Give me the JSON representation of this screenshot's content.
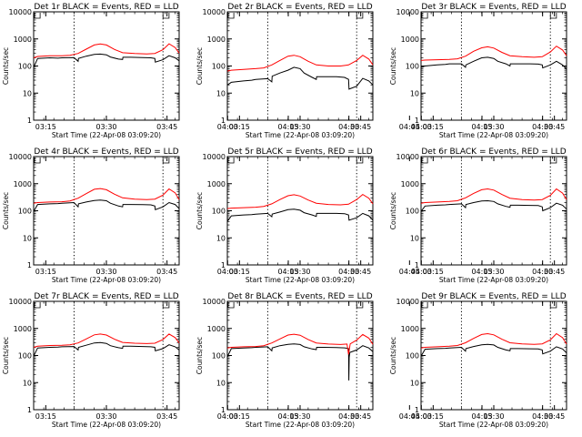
{
  "chart_data": {
    "type": "line",
    "shared": {
      "xlabel": "Start Time (22-Apr-08 03:09:20)",
      "ylabel": "Counts/sec",
      "x_ticks": [
        "03:15",
        "03:30",
        "03:45",
        "04:00",
        "04:15",
        "04:30",
        "04:45"
      ],
      "y_ticks": [
        "1",
        "10",
        "100",
        "1000",
        "10000"
      ],
      "y_scale": "log",
      "ylim": [
        1,
        10000
      ],
      "xlim_minutes": [
        3,
        39
      ],
      "dotted_vlines_minutes": [
        13,
        35
      ],
      "grid": false,
      "series_colors": {
        "events": "#000000",
        "lld": "#ff0000"
      }
    },
    "panels": [
      {
        "title": "Det 1r BLACK = Events, RED = LLD",
        "series": [
          {
            "x": [
              3,
              4,
              7,
              9,
              10,
              13,
              14,
              14.1,
              16,
              18,
              19.5,
              21,
              22,
              24,
              25,
              25.1,
              27,
              30,
              32,
              33,
              33.1,
              35,
              36.5,
              38,
              39
            ],
            "values": [
              90,
              190,
              200,
              195,
              200,
              205,
              150,
              190,
              230,
              270,
              275,
              260,
              215,
              180,
              175,
              210,
              210,
              205,
              200,
              190,
              140,
              170,
              240,
              200,
              155
            ]
          },
          {
            "x": [
              3,
              4,
              7,
              10,
              12,
              14,
              16,
              18,
              19.5,
              21,
              23,
              25,
              28,
              31,
              33,
              35,
              36.5,
              38,
              39
            ],
            "values": [
              200,
              225,
              240,
              240,
              250,
              290,
              420,
              600,
              650,
              600,
              410,
              310,
              290,
              280,
              290,
              400,
              660,
              480,
              300
            ]
          }
        ]
      },
      {
        "title": "Det 2r BLACK = Events, RED = LLD",
        "series": [
          {
            "x": [
              3,
              4,
              7,
              9,
              10,
              13,
              14,
              14.1,
              16,
              18,
              19.5,
              21,
              22,
              24,
              25,
              25.1,
              27,
              30,
              32,
              33,
              33.1,
              35,
              36.5,
              38,
              39
            ],
            "values": [
              20,
              25,
              28,
              30,
              32,
              34,
              26,
              42,
              55,
              70,
              90,
              80,
              55,
              38,
              32,
              40,
              40,
              40,
              38,
              32,
              14,
              18,
              35,
              28,
              20
            ]
          },
          {
            "x": [
              3,
              4,
              7,
              10,
              12,
              14,
              16,
              18,
              19.5,
              21,
              23,
              25,
              28,
              31,
              33,
              35,
              36.5,
              38,
              39
            ],
            "values": [
              65,
              70,
              75,
              80,
              85,
              110,
              160,
              230,
              250,
              220,
              150,
              110,
              100,
              100,
              110,
              160,
              250,
              180,
              110
            ]
          }
        ]
      },
      {
        "title": "Det 3r BLACK = Events, RED = LLD",
        "series": [
          {
            "x": [
              3,
              4,
              7,
              9,
              10,
              13,
              14,
              14.1,
              16,
              18,
              19.5,
              21,
              22,
              24,
              25,
              25.1,
              27,
              30,
              32,
              33,
              33.1,
              35,
              36.5,
              38,
              39
            ],
            "values": [
              90,
              100,
              110,
              115,
              120,
              120,
              90,
              110,
              150,
              200,
              210,
              190,
              150,
              120,
              100,
              120,
              120,
              120,
              118,
              110,
              85,
              110,
              150,
              110,
              75
            ]
          },
          {
            "x": [
              3,
              4,
              7,
              10,
              12,
              14,
              16,
              18,
              19.5,
              21,
              23,
              25,
              28,
              31,
              33,
              35,
              36.5,
              38,
              39
            ],
            "values": [
              160,
              165,
              170,
              175,
              185,
              230,
              350,
              470,
              510,
              460,
              320,
              240,
              220,
              210,
              220,
              330,
              540,
              390,
              240
            ]
          }
        ]
      },
      {
        "title": "Det 4r BLACK = Events, RED = LLD",
        "series": [
          {
            "x": [
              3,
              4,
              7,
              9,
              10,
              13,
              14,
              14.1,
              16,
              18,
              19.5,
              21,
              22,
              24,
              25,
              25.1,
              27,
              30,
              32,
              33,
              33.1,
              35,
              36.5,
              38,
              39
            ],
            "values": [
              95,
              170,
              180,
              185,
              190,
              200,
              140,
              180,
              210,
              240,
              250,
              235,
              190,
              150,
              140,
              170,
              170,
              168,
              165,
              150,
              110,
              140,
              200,
              170,
              120
            ]
          },
          {
            "x": [
              3,
              4,
              7,
              10,
              12,
              14,
              16,
              18,
              19.5,
              21,
              23,
              25,
              28,
              31,
              33,
              35,
              36.5,
              38,
              39
            ],
            "values": [
              190,
              200,
              210,
              215,
              230,
              290,
              430,
              620,
              660,
              600,
              410,
              300,
              270,
              260,
              270,
              380,
              640,
              460,
              260
            ]
          }
        ]
      },
      {
        "title": "Det 5r BLACK = Events, RED = LLD",
        "series": [
          {
            "x": [
              3,
              4,
              7,
              9,
              10,
              13,
              14,
              14.1,
              16,
              18,
              19.5,
              21,
              22,
              24,
              25,
              25.1,
              27,
              30,
              32,
              33,
              33.1,
              35,
              36.5,
              38,
              39
            ],
            "values": [
              40,
              65,
              70,
              72,
              75,
              80,
              60,
              75,
              90,
              110,
              115,
              105,
              85,
              70,
              62,
              80,
              80,
              80,
              78,
              70,
              45,
              55,
              80,
              65,
              45
            ]
          },
          {
            "x": [
              3,
              4,
              7,
              10,
              12,
              14,
              16,
              18,
              19.5,
              21,
              23,
              25,
              28,
              31,
              33,
              35,
              36.5,
              38,
              39
            ],
            "values": [
              120,
              125,
              130,
              135,
              145,
              180,
              260,
              360,
              390,
              350,
              250,
              190,
              170,
              165,
              175,
              260,
              400,
              290,
              180
            ]
          }
        ]
      },
      {
        "title": "Det 6r BLACK = Events, RED = LLD",
        "series": [
          {
            "x": [
              3,
              4,
              7,
              9,
              10,
              13,
              14,
              14.1,
              16,
              18,
              19.5,
              21,
              22,
              24,
              25,
              25.1,
              27,
              30,
              32,
              33,
              33.1,
              35,
              36.5,
              38,
              39
            ],
            "values": [
              95,
              150,
              160,
              165,
              170,
              180,
              130,
              170,
              200,
              230,
              235,
              220,
              180,
              145,
              135,
              160,
              160,
              158,
              155,
              140,
              100,
              130,
              190,
              160,
              115
            ]
          },
          {
            "x": [
              3,
              4,
              7,
              10,
              12,
              14,
              16,
              18,
              19.5,
              21,
              23,
              25,
              28,
              31,
              33,
              35,
              36.5,
              38,
              39
            ],
            "values": [
              190,
              200,
              210,
              220,
              235,
              300,
              440,
              600,
              640,
              580,
              400,
              290,
              260,
              250,
              260,
              370,
              640,
              450,
              260
            ]
          }
        ]
      },
      {
        "title": "Det 7r BLACK = Events, RED = LLD",
        "series": [
          {
            "x": [
              3,
              4,
              7,
              9,
              10,
              13,
              14,
              14.1,
              16,
              18,
              19.5,
              21,
              22,
              24,
              25,
              25.1,
              27,
              30,
              32,
              33,
              33.1,
              35,
              36.5,
              38,
              39
            ],
            "values": [
              95,
              190,
              200,
              205,
              210,
              215,
              160,
              200,
              240,
              290,
              300,
              280,
              230,
              195,
              185,
              220,
              220,
              215,
              210,
              200,
              150,
              180,
              250,
              210,
              160
            ]
          },
          {
            "x": [
              3,
              4,
              7,
              10,
              12,
              14,
              16,
              18,
              19.5,
              21,
              23,
              25,
              28,
              31,
              33,
              35,
              36.5,
              38,
              39
            ],
            "values": [
              200,
              220,
              235,
              240,
              250,
              290,
              410,
              580,
              620,
              570,
              400,
              305,
              285,
              275,
              285,
              390,
              620,
              460,
              290
            ]
          }
        ]
      },
      {
        "title": "Det 8r BLACK = Events, RED = LLD",
        "series": [
          {
            "x": [
              3,
              4,
              7,
              9,
              10,
              13,
              14,
              14.1,
              16,
              18,
              19.5,
              21,
              22,
              24,
              25,
              25.1,
              27,
              30,
              32,
              33,
              33.05,
              33.15,
              33.3,
              35,
              36.5,
              38,
              39
            ],
            "values": [
              90,
              180,
              190,
              195,
              200,
              210,
              150,
              190,
              230,
              260,
              270,
              255,
              210,
              175,
              165,
              200,
              200,
              196,
              192,
              180,
              12,
              85,
              130,
              160,
              230,
              190,
              140
            ]
          },
          {
            "x": [
              3,
              4,
              7,
              10,
              12,
              14,
              16,
              18,
              19.5,
              21,
              23,
              25,
              28,
              31,
              32.6,
              33,
              33.4,
              35,
              36.5,
              38,
              39
            ],
            "values": [
              190,
              200,
              210,
              215,
              230,
              290,
              410,
              570,
              610,
              560,
              390,
              290,
              265,
              255,
              265,
              110,
              270,
              370,
              600,
              440,
              260
            ]
          }
        ]
      },
      {
        "title": "Det 9r BLACK = Events, RED = LLD",
        "series": [
          {
            "x": [
              3,
              4,
              7,
              9,
              10,
              13,
              14,
              14.1,
              16,
              18,
              19.5,
              21,
              22,
              24,
              25,
              25.1,
              27,
              30,
              32,
              33,
              33.1,
              35,
              36.5,
              38,
              39
            ],
            "values": [
              95,
              170,
              180,
              185,
              190,
              200,
              145,
              180,
              215,
              250,
              260,
              245,
              200,
              160,
              150,
              180,
              180,
              178,
              175,
              160,
              115,
              145,
              210,
              175,
              125
            ]
          },
          {
            "x": [
              3,
              4,
              7,
              10,
              12,
              14,
              16,
              18,
              19.5,
              21,
              23,
              25,
              28,
              31,
              33,
              35,
              36.5,
              38,
              39
            ],
            "values": [
              190,
              200,
              210,
              220,
              235,
              295,
              430,
              600,
              640,
              580,
              400,
              295,
              270,
              260,
              270,
              380,
              640,
              460,
              265
            ]
          }
        ]
      }
    ]
  }
}
